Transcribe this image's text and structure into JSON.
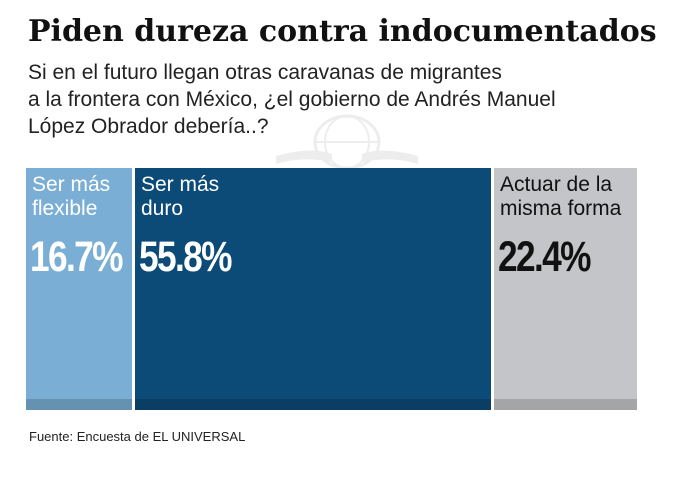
{
  "title": "Piden dureza contra indocumentados",
  "subtitle_lines": [
    "Si en el futuro llegan otras caravanas de migrantes",
    "a la frontera con México, ¿el gobierno de Andrés Manuel",
    "López Obrador debería..?"
  ],
  "source": "Fuente: Encuesta de EL UNIVERSAL",
  "chart_data": {
    "type": "bar",
    "categories": [
      "Ser más flexible",
      "Ser más duro",
      "Actuar de la misma forma"
    ],
    "values": [
      16.7,
      55.8,
      22.4
    ],
    "value_labels": [
      "16.7%",
      "55.8%",
      "22.4%"
    ],
    "category_label_lines": [
      [
        "Ser más",
        "flexible"
      ],
      [
        "Ser más",
        "duro"
      ],
      [
        "Actuar de la",
        "misma forma"
      ]
    ],
    "colors": [
      "#7aaed4",
      "#0c4a78",
      "#c3c5c8"
    ],
    "text_colors": [
      "#ffffff",
      "#ffffff",
      "#111111"
    ],
    "title": "Piden dureza contra indocumentados",
    "xlabel": "",
    "ylabel": "",
    "unit": "%",
    "grid": false,
    "legend": "none"
  }
}
